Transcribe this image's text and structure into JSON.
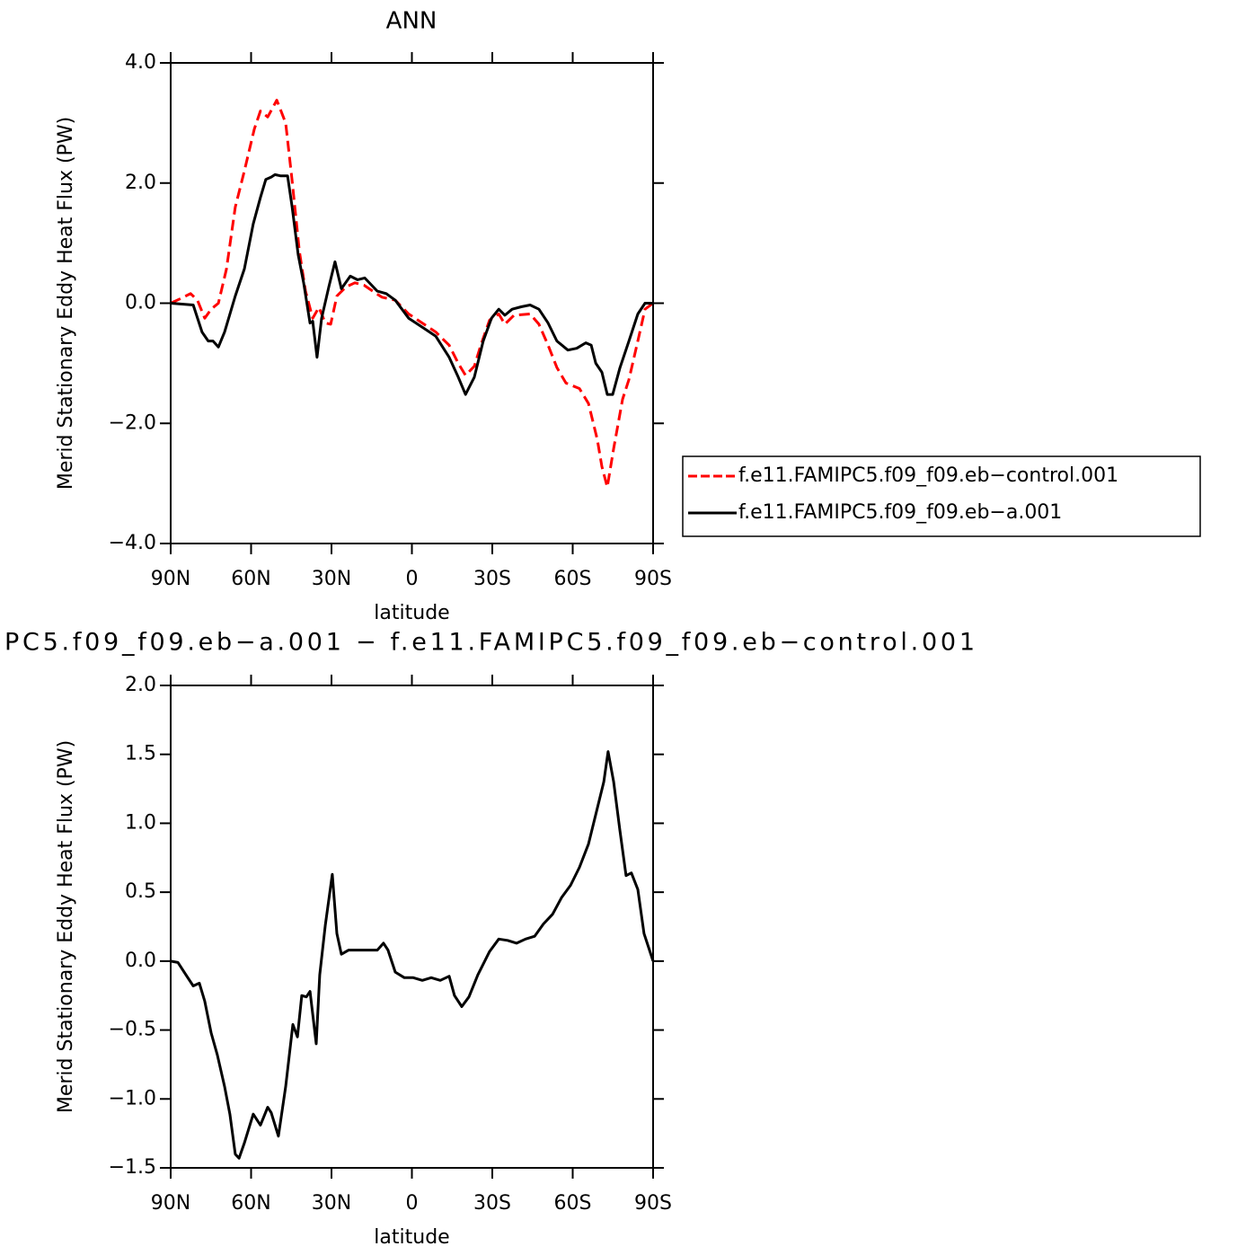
{
  "chart_data": [
    {
      "type": "line",
      "title": "ANN",
      "xlabel": "latitude",
      "ylabel": "Merid Stationary Eddy Heat Flux (PW)",
      "xlim": [
        90,
        -90
      ],
      "xticks": [
        {
          "value": 90,
          "label": "90N"
        },
        {
          "value": 60,
          "label": "60N"
        },
        {
          "value": 30,
          "label": "30N"
        },
        0,
        {
          "value": -30,
          "label": "30S"
        },
        {
          "value": -60,
          "label": "60S"
        },
        {
          "value": -90,
          "label": "90S"
        }
      ],
      "ylim": [
        -4,
        4
      ],
      "yticks": [
        {
          "value": -4,
          "label": "−4.0"
        },
        {
          "value": -2,
          "label": "−2.0"
        },
        {
          "value": 0,
          "label": "0.0"
        },
        {
          "value": 2,
          "label": "2.0"
        },
        {
          "value": 4,
          "label": "4.0"
        }
      ],
      "legend": "right",
      "series": [
        {
          "name": "f.e11.FAMIPC5.f09_f09.eb−control.001",
          "color": "#ff0000",
          "linestyle": "dashed",
          "x": [
            90,
            86.6,
            82.6,
            80,
            77.3,
            74.9,
            72.2,
            69.2,
            65.9,
            62.5,
            58.8,
            56.5,
            53.8,
            50.4,
            47.1,
            44.7,
            42,
            39.7,
            37,
            34.7,
            32.3,
            30.3,
            28,
            24.6,
            21.3,
            17.9,
            14.6,
            11.2,
            6.2,
            1.2,
            -3.9,
            -8.9,
            -13.9,
            -17.3,
            -20,
            -23.3,
            -25.7,
            -29,
            -32.4,
            -34.7,
            -38.1,
            -44.1,
            -47.4,
            -50.8,
            -54.1,
            -57.5,
            -62.5,
            -65.9,
            -69.2,
            -70.9,
            -72.9,
            -75.3,
            -78.6,
            -81,
            -84.3,
            -87,
            -90
          ],
          "values": [
            0,
            0.07,
            0.16,
            0.05,
            -0.25,
            -0.1,
            0,
            0.57,
            1.6,
            2.2,
            2.9,
            3.2,
            3.1,
            3.38,
            3.0,
            2.05,
            0.87,
            0.2,
            -0.25,
            -0.07,
            -0.33,
            -0.35,
            0.12,
            0.27,
            0.34,
            0.3,
            0.2,
            0.1,
            0.05,
            -0.18,
            -0.33,
            -0.48,
            -0.7,
            -1.0,
            -1.2,
            -1.05,
            -0.7,
            -0.28,
            -0.18,
            -0.35,
            -0.2,
            -0.18,
            -0.35,
            -0.7,
            -1.07,
            -1.33,
            -1.42,
            -1.67,
            -2.27,
            -2.72,
            -3.06,
            -2.42,
            -1.6,
            -1.27,
            -0.63,
            -0.1,
            0
          ]
        },
        {
          "name": "f.e11.FAMIPC5.f09_f09.eb−a.001",
          "color": "#000000",
          "linestyle": "solid",
          "x": [
            90,
            81.6,
            78.3,
            76,
            74.2,
            72.2,
            69.9,
            65.9,
            62.5,
            59.2,
            56.5,
            54.5,
            52.5,
            51.1,
            49.1,
            46.4,
            44.7,
            42.4,
            40.4,
            38,
            37,
            35.4,
            33.7,
            31,
            28.7,
            26.3,
            23,
            20.3,
            17.6,
            12.9,
            9.6,
            6.2,
            1.2,
            -3.9,
            -8.9,
            -13.9,
            -17.3,
            -20,
            -23.3,
            -26.6,
            -29.7,
            -32.4,
            -34.7,
            -37.4,
            -40.8,
            -44.1,
            -47.4,
            -50.8,
            -54.1,
            -58.2,
            -61.5,
            -64.9,
            -66.9,
            -68.6,
            -70.9,
            -72.9,
            -74.9,
            -77.6,
            -81,
            -84.3,
            -87,
            -90
          ],
          "values": [
            0,
            -0.03,
            -0.48,
            -0.63,
            -0.63,
            -0.73,
            -0.48,
            0.12,
            0.57,
            1.32,
            1.76,
            2.06,
            2.1,
            2.14,
            2.12,
            2.12,
            1.61,
            0.8,
            0.34,
            -0.33,
            -0.3,
            -0.9,
            -0.25,
            0.27,
            0.69,
            0.24,
            0.45,
            0.39,
            0.42,
            0.2,
            0.16,
            0.05,
            -0.25,
            -0.4,
            -0.55,
            -0.9,
            -1.23,
            -1.52,
            -1.23,
            -0.63,
            -0.25,
            -0.1,
            -0.2,
            -0.1,
            -0.06,
            -0.03,
            -0.1,
            -0.33,
            -0.63,
            -0.78,
            -0.75,
            -0.66,
            -0.7,
            -1.0,
            -1.15,
            -1.52,
            -1.52,
            -1.08,
            -0.63,
            -0.18,
            0,
            0
          ]
        }
      ]
    },
    {
      "type": "line",
      "title": "PC5.f09_f09.eb−a.001 − f.e11.FAMIPC5.f09_f09.eb−control.001",
      "xlabel": "latitude",
      "ylabel": "Merid Stationary Eddy Heat Flux (PW)",
      "xlim": [
        90,
        -90
      ],
      "xticks": [
        {
          "value": 90,
          "label": "90N"
        },
        {
          "value": 60,
          "label": "60N"
        },
        {
          "value": 30,
          "label": "30N"
        },
        0,
        {
          "value": -30,
          "label": "30S"
        },
        {
          "value": -60,
          "label": "60S"
        },
        {
          "value": -90,
          "label": "90S"
        }
      ],
      "ylim": [
        -1.5,
        2
      ],
      "yticks": [
        {
          "value": -1.5,
          "label": "−1.5"
        },
        {
          "value": -1,
          "label": "−1.0"
        },
        {
          "value": -0.5,
          "label": "−0.5"
        },
        {
          "value": 0,
          "label": "0.0"
        },
        {
          "value": 0.5,
          "label": "0.5"
        },
        {
          "value": 1,
          "label": "1.0"
        },
        {
          "value": 1.5,
          "label": "1.5"
        },
        {
          "value": 2,
          "label": "2.0"
        }
      ],
      "series": [
        {
          "color": "#000000",
          "linestyle": "solid",
          "x": [
            90,
            87.3,
            84.3,
            81.6,
            79.3,
            77.3,
            74.9,
            72.6,
            69.9,
            67.9,
            65.9,
            64.5,
            62.5,
            59.2,
            56.5,
            53.8,
            52.5,
            49.8,
            47.1,
            44.4,
            42.7,
            41.1,
            39.4,
            38,
            35.7,
            34.4,
            32.3,
            29.7,
            28,
            26.3,
            23.6,
            20.3,
            16.3,
            12.9,
            10.6,
            8.9,
            6.2,
            2.8,
            -0.5,
            -3.9,
            -7.2,
            -10.6,
            -13.9,
            -15.9,
            -18.6,
            -21.3,
            -24.6,
            -29,
            -32.4,
            -35.7,
            -39.1,
            -42.4,
            -45.8,
            -49.1,
            -52.5,
            -55.8,
            -59.2,
            -62.5,
            -65.9,
            -69.2,
            -71.6,
            -73.2,
            -75.3,
            -77.6,
            -79.9,
            -81.9,
            -84.3,
            -86.6,
            -90
          ],
          "values": [
            0,
            -0.01,
            -0.1,
            -0.18,
            -0.16,
            -0.29,
            -0.52,
            -0.68,
            -0.91,
            -1.11,
            -1.4,
            -1.43,
            -1.32,
            -1.11,
            -1.19,
            -1.06,
            -1.1,
            -1.27,
            -0.91,
            -0.46,
            -0.55,
            -0.25,
            -0.26,
            -0.22,
            -0.6,
            -0.1,
            0.26,
            0.63,
            0.2,
            0.05,
            0.08,
            0.08,
            0.08,
            0.08,
            0.13,
            0.08,
            -0.08,
            -0.12,
            -0.12,
            -0.14,
            -0.12,
            -0.14,
            -0.11,
            -0.25,
            -0.33,
            -0.26,
            -0.1,
            0.07,
            0.16,
            0.15,
            0.13,
            0.16,
            0.18,
            0.27,
            0.34,
            0.46,
            0.55,
            0.68,
            0.85,
            1.11,
            1.3,
            1.52,
            1.3,
            0.95,
            0.62,
            0.64,
            0.52,
            0.2,
            0
          ]
        }
      ]
    }
  ]
}
